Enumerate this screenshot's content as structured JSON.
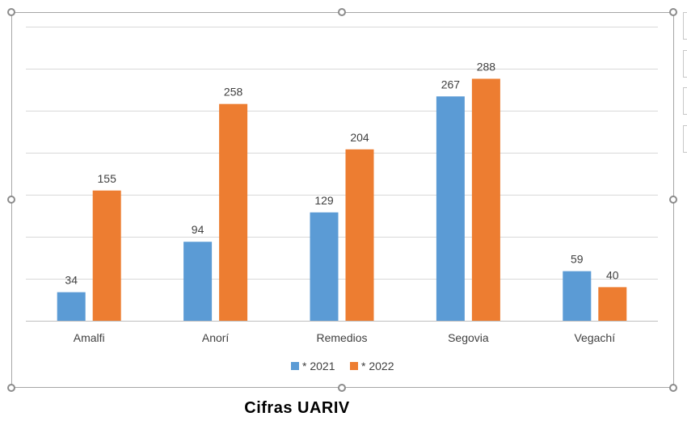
{
  "chart_data": {
    "type": "bar",
    "title": "",
    "xlabel": "",
    "ylabel": "",
    "categories": [
      "Amalfi",
      "Anorí",
      "Remedios",
      "Segovia",
      "Vegachí"
    ],
    "series": [
      {
        "name": "* 2021",
        "color": "#5b9bd5",
        "values": [
          34,
          94,
          129,
          267,
          59
        ]
      },
      {
        "name": "* 2022",
        "color": "#ed7d31",
        "values": [
          155,
          258,
          204,
          288,
          40
        ]
      }
    ],
    "ylim": [
      0,
      350
    ],
    "gridlines": true,
    "legend_position": "bottom"
  },
  "caption": "Cifras UARIV",
  "colors": {
    "gridline": "#d9d9d9",
    "axis": "#bfbfbf",
    "frame": "#a6a6a6"
  }
}
